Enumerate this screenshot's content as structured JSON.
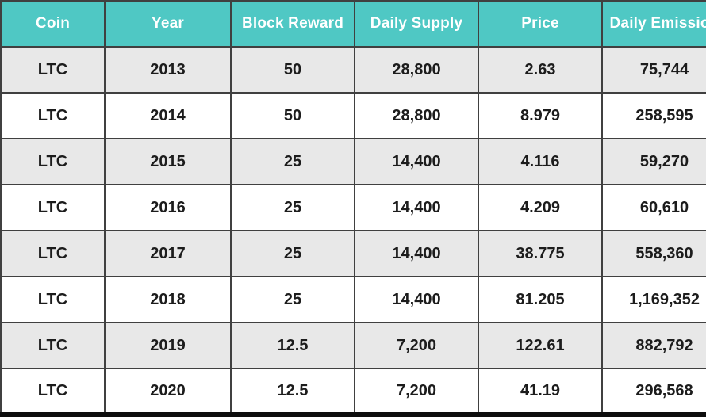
{
  "chart_data": {
    "type": "table",
    "title": "",
    "headers": [
      "Coin",
      "Year",
      "Block Reward",
      "Daily Supply",
      "Price",
      "Daily Emission"
    ],
    "rows": [
      [
        "LTC",
        "2013",
        "50",
        "28,800",
        "2.63",
        "75,744"
      ],
      [
        "LTC",
        "2014",
        "50",
        "28,800",
        "8.979",
        "258,595"
      ],
      [
        "LTC",
        "2015",
        "25",
        "14,400",
        "4.116",
        "59,270"
      ],
      [
        "LTC",
        "2016",
        "25",
        "14,400",
        "4.209",
        "60,610"
      ],
      [
        "LTC",
        "2017",
        "25",
        "14,400",
        "38.775",
        "558,360"
      ],
      [
        "LTC",
        "2018",
        "25",
        "14,400",
        "81.205",
        "1,169,352"
      ],
      [
        "LTC",
        "2019",
        "12.5",
        "7,200",
        "122.61",
        "882,792"
      ],
      [
        "LTC",
        "2020",
        "12.5",
        "7,200",
        "41.19",
        "296,568"
      ]
    ],
    "layout_hints": {
      "row_striping": "odd rows gray, even rows white",
      "last_column_clipped_at_right_edge": true
    }
  },
  "colors": {
    "header_bg": "#4fc8c4",
    "header_text": "#ffffff",
    "row_alt_bg": "#e8e8e8",
    "row_bg": "#ffffff",
    "grid_line": "#404040",
    "outer_line": "#0d0d0d",
    "cell_text": "#1c1c1c"
  }
}
